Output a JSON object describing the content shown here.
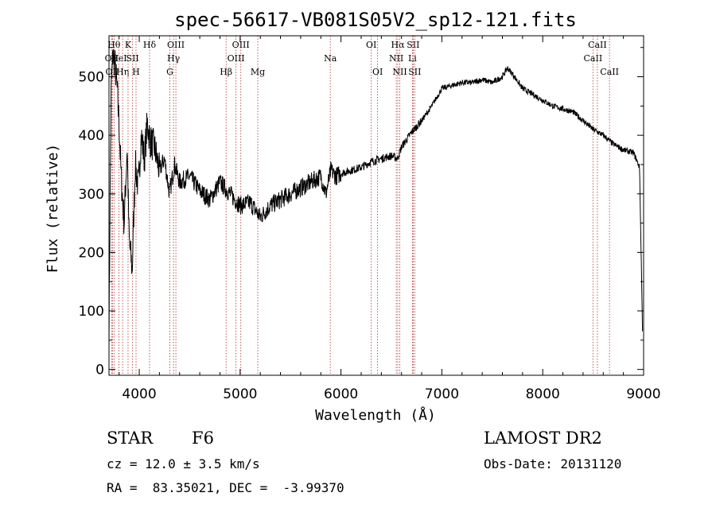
{
  "chart_data": {
    "type": "line",
    "title": "spec-56617-VB081S05V2_sp12-121.fits",
    "xlabel": "Wavelength (Å)",
    "ylabel": "Flux (relative)",
    "xlim": [
      3700,
      9000
    ],
    "ylim": [
      -10,
      570
    ],
    "xticks": [
      4000,
      5000,
      6000,
      7000,
      8000,
      9000
    ],
    "yticks": [
      0,
      100,
      200,
      300,
      400,
      500
    ],
    "grid": false,
    "line_color": "#000000",
    "marker_color": "#b03030",
    "series": [
      {
        "x": [
          3700,
          3720,
          3740,
          3760,
          3780,
          3800,
          3820,
          3850,
          3880,
          3900,
          3930,
          3960,
          3990,
          4020,
          4050,
          4080,
          4110,
          4150,
          4200,
          4250,
          4300,
          4350,
          4400,
          4500,
          4600,
          4700,
          4800,
          4900,
          5000,
          5100,
          5200,
          5300,
          5400,
          5500,
          5600,
          5700,
          5800,
          5850,
          5900,
          5950,
          6000,
          6100,
          6200,
          6300,
          6400,
          6500,
          6560,
          6600,
          6700,
          6800,
          6900,
          7000,
          7100,
          7200,
          7300,
          7400,
          7500,
          7600,
          7650,
          7700,
          7800,
          7900,
          8000,
          8100,
          8200,
          8300,
          8400,
          8500,
          8600,
          8700,
          8800,
          8900,
          8960,
          8990
        ],
        "y": [
          60,
          470,
          540,
          520,
          480,
          420,
          330,
          250,
          380,
          220,
          170,
          350,
          310,
          400,
          360,
          420,
          390,
          380,
          340,
          360,
          300,
          350,
          320,
          330,
          305,
          290,
          320,
          300,
          280,
          285,
          260,
          280,
          290,
          300,
          310,
          320,
          330,
          300,
          340,
          330,
          335,
          340,
          345,
          355,
          360,
          365,
          360,
          380,
          405,
          425,
          450,
          480,
          485,
          490,
          490,
          495,
          490,
          500,
          515,
          505,
          480,
          470,
          460,
          450,
          445,
          440,
          425,
          410,
          400,
          385,
          375,
          370,
          345,
          60
        ]
      }
    ],
    "spectral_lines": [
      {
        "x": 3727,
        "label": "OII",
        "row": 1
      },
      {
        "x": 3734,
        "label": "OII",
        "row": 2
      },
      {
        "x": 3750,
        "label": "Hθ",
        "row": 0
      },
      {
        "x": 3798,
        "label": "HeI",
        "row": 1
      },
      {
        "x": 3835,
        "label": "Hη",
        "row": 2
      },
      {
        "x": 3889,
        "label": "K",
        "row": 0
      },
      {
        "x": 3934,
        "label": "SII",
        "row": 1
      },
      {
        "x": 3968,
        "label": "H",
        "row": 2
      },
      {
        "x": 4102,
        "label": "Hδ",
        "row": 0
      },
      {
        "x": 4304,
        "label": "G",
        "row": 2
      },
      {
        "x": 4340,
        "label": "Hγ",
        "row": 1
      },
      {
        "x": 4363,
        "label": "OIII",
        "row": 0
      },
      {
        "x": 4861,
        "label": "Hβ",
        "row": 2
      },
      {
        "x": 4959,
        "label": "OIII",
        "row": 1
      },
      {
        "x": 5007,
        "label": "OIII",
        "row": 0
      },
      {
        "x": 5175,
        "label": "Mg",
        "row": 2
      },
      {
        "x": 5894,
        "label": "Na",
        "row": 1
      },
      {
        "x": 6300,
        "label": "OI",
        "row": 0
      },
      {
        "x": 6363,
        "label": "OI",
        "row": 2
      },
      {
        "x": 6548,
        "label": "NII",
        "row": 1
      },
      {
        "x": 6563,
        "label": "Hα",
        "row": 0
      },
      {
        "x": 6583,
        "label": "NII",
        "row": 2
      },
      {
        "x": 6708,
        "label": "Li",
        "row": 1
      },
      {
        "x": 6716,
        "label": "SII",
        "row": 0
      },
      {
        "x": 6731,
        "label": "SII",
        "row": 2
      },
      {
        "x": 8498,
        "label": "CaII",
        "row": 1
      },
      {
        "x": 8542,
        "label": "CaII",
        "row": 0
      },
      {
        "x": 8662,
        "label": "CaII",
        "row": 2
      }
    ]
  },
  "info": {
    "object_class": "STAR",
    "subclass": "F6",
    "survey": "LAMOST DR2",
    "redshift": "cz = 12.0 ± 3.5 km/s",
    "obs_date": "Obs-Date: 20131120",
    "coords": "RA =  83.35021, DEC =  -3.99370"
  }
}
